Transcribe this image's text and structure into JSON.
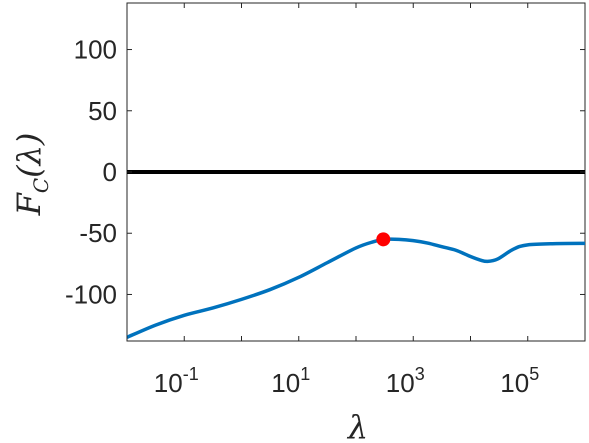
{
  "chart_data": {
    "type": "line",
    "xscale": "log",
    "xlim": [
      0.01,
      1000000
    ],
    "ylim": [
      -138,
      138
    ],
    "xlabel": "λ",
    "ylabel": {
      "main": "F",
      "sub": "C",
      "arg": "(λ)"
    },
    "xticks": [
      {
        "value": 0.1,
        "base": "10",
        "exp": "-1"
      },
      {
        "value": 10,
        "base": "10",
        "exp": "1"
      },
      {
        "value": 1000,
        "base": "10",
        "exp": "3"
      },
      {
        "value": 100000,
        "base": "10",
        "exp": "5"
      }
    ],
    "yticks": [
      {
        "value": 100,
        "label": "100"
      },
      {
        "value": 50,
        "label": "50"
      },
      {
        "value": 0,
        "label": "0"
      },
      {
        "value": -50,
        "label": "-50"
      },
      {
        "value": -100,
        "label": "-100"
      }
    ],
    "grid": false,
    "series": [
      {
        "color": "#0072BD",
        "x": [
          0.01,
          0.0316,
          0.1,
          0.316,
          1,
          3.16,
          10,
          31.6,
          100,
          200,
          316,
          562,
          1000,
          1780,
          3160,
          5620,
          10000,
          15000,
          20000,
          30000,
          56200,
          100000,
          316000,
          1000000
        ],
        "y": [
          -135,
          -125,
          -117,
          -111,
          -104,
          -96,
          -86,
          -74,
          -62,
          -57,
          -55,
          -55,
          -56,
          -58,
          -61,
          -64,
          -69,
          -72,
          -73,
          -71,
          -63,
          -59.5,
          -58.5,
          -58.3
        ]
      },
      {
        "color": "#000000",
        "x": [
          0.01,
          1000000
        ],
        "y": [
          0,
          0
        ]
      }
    ],
    "markers": [
      {
        "x": 300,
        "y": -55,
        "color": "#FF0000"
      }
    ]
  }
}
